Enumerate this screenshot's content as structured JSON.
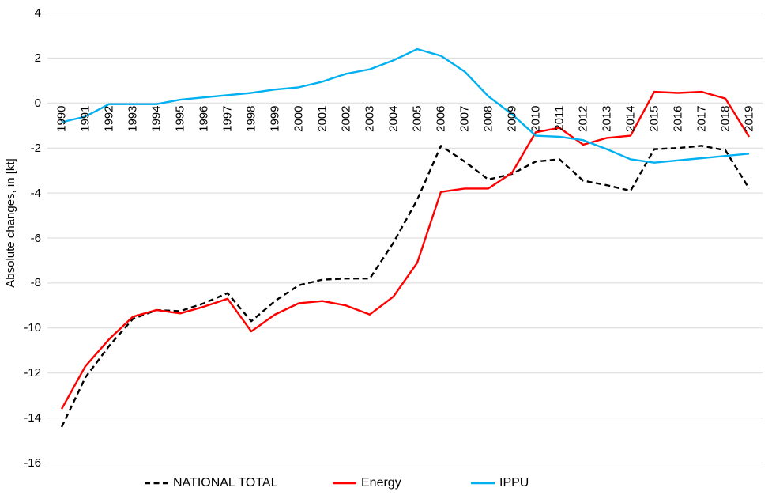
{
  "figure": {
    "background": "#FFFFFF",
    "grid_color": "#D9D9D9",
    "text_color": "#000000"
  },
  "axis": {
    "ylabel": "Absolute changes, in [kt]"
  },
  "chart_data": {
    "type": "line",
    "title": "",
    "xlabel": "",
    "ylabel": "Absolute changes, in [kt]",
    "ylim": [
      -16,
      4
    ],
    "ytick_step": 2,
    "grid": "horizontal",
    "legend_position": "bottom",
    "ytick_values": [
      4,
      2,
      0,
      -2,
      -4,
      -6,
      -8,
      -10,
      -12,
      -14,
      -16
    ],
    "ytick_labels": [
      "4",
      "2",
      "0",
      "-2",
      "-4",
      "-6",
      "-8",
      "-10",
      "-12",
      "-14",
      "-16"
    ],
    "x": [
      1990,
      1991,
      1992,
      1993,
      1994,
      1995,
      1996,
      1997,
      1998,
      1999,
      2000,
      2001,
      2002,
      2003,
      2004,
      2005,
      2006,
      2007,
      2008,
      2009,
      2010,
      2011,
      2012,
      2013,
      2014,
      2015,
      2016,
      2017,
      2018,
      2019
    ],
    "xtick_labels": [
      "1990",
      "1991",
      "1992",
      "1993",
      "1994",
      "1995",
      "1996",
      "1997",
      "1998",
      "1999",
      "2000",
      "2001",
      "2002",
      "2003",
      "2004",
      "2005",
      "2006",
      "2007",
      "2008",
      "2009",
      "2010",
      "2011",
      "2012",
      "2013",
      "2014",
      "2015",
      "2016",
      "2017",
      "2018",
      "2019"
    ],
    "series": [
      {
        "name": "NATIONAL TOTAL",
        "color": "#000000",
        "dash": true,
        "values": [
          -14.4,
          -12.2,
          -10.8,
          -9.6,
          -9.2,
          -9.25,
          -8.9,
          -8.45,
          -9.7,
          -8.8,
          -8.1,
          -7.85,
          -7.8,
          -7.8,
          -6.2,
          -4.3,
          -1.9,
          -2.6,
          -3.4,
          -3.15,
          -2.6,
          -2.5,
          -3.45,
          -3.65,
          -3.9,
          -2.05,
          -2.0,
          -1.9,
          -2.1,
          -3.8
        ]
      },
      {
        "name": "Energy",
        "color": "#FF0000",
        "dash": false,
        "values": [
          -13.6,
          -11.7,
          -10.5,
          -9.5,
          -9.2,
          -9.35,
          -9.05,
          -8.7,
          -10.15,
          -9.4,
          -8.9,
          -8.8,
          -9.0,
          -9.4,
          -8.6,
          -7.1,
          -3.95,
          -3.8,
          -3.8,
          -3.1,
          -1.3,
          -1.1,
          -1.85,
          -1.55,
          -1.45,
          0.5,
          0.45,
          0.5,
          0.2,
          -1.5
        ]
      },
      {
        "name": "IPPU",
        "color": "#00B0F0",
        "dash": false,
        "values": [
          -0.85,
          -0.6,
          -0.05,
          -0.05,
          -0.05,
          0.15,
          0.25,
          0.35,
          0.45,
          0.6,
          0.7,
          0.95,
          1.3,
          1.5,
          1.9,
          2.4,
          2.1,
          1.4,
          0.3,
          -0.5,
          -1.45,
          -1.5,
          -1.65,
          -2.05,
          -2.5,
          -2.65,
          -2.55,
          -2.45,
          -2.35,
          -2.25
        ]
      }
    ]
  },
  "legend": {
    "items": [
      {
        "label": "NATIONAL TOTAL"
      },
      {
        "label": "Energy"
      },
      {
        "label": "IPPU"
      }
    ]
  }
}
